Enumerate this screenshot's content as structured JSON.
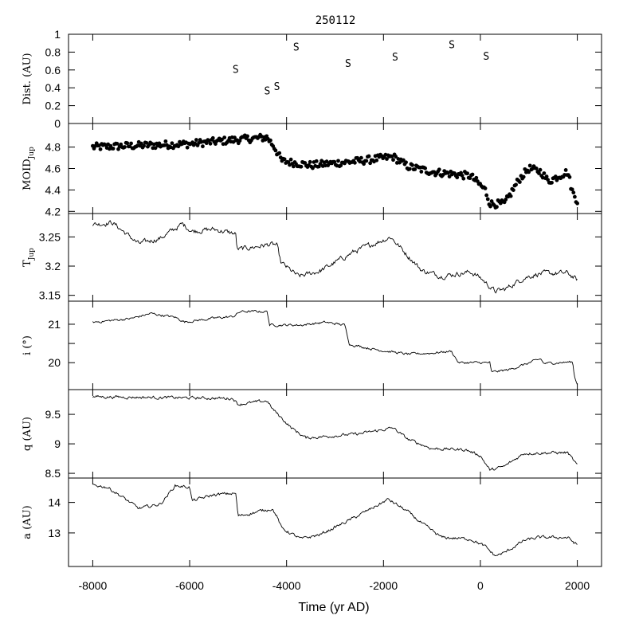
{
  "figure": {
    "title": "250112",
    "xlabel": "Time (yr AD)",
    "xlim": [
      -8500,
      2500
    ],
    "xticks": [
      -8000,
      -6000,
      -4000,
      -2000,
      0,
      2000
    ],
    "xtick_labels": [
      "-8000",
      "-6000",
      "-4000",
      "-2000",
      "0",
      "2000"
    ]
  },
  "chart_data": [
    {
      "type": "scatter",
      "name": "dist",
      "ylabel": "Dist. (AU)",
      "ylim": [
        0,
        1
      ],
      "yticks": [
        0,
        0.2,
        0.4,
        0.6,
        0.8,
        1
      ],
      "ytick_labels": [
        "0",
        "0.2",
        "0.4",
        "0.6",
        "0.8",
        "1"
      ],
      "marker_label": "S",
      "points": [
        {
          "x": -5050,
          "y": 0.61
        },
        {
          "x": -4400,
          "y": 0.37
        },
        {
          "x": -4200,
          "y": 0.42
        },
        {
          "x": -3800,
          "y": 0.86
        },
        {
          "x": -2730,
          "y": 0.68
        },
        {
          "x": -1760,
          "y": 0.75
        },
        {
          "x": -590,
          "y": 0.89
        },
        {
          "x": 120,
          "y": 0.76
        }
      ]
    },
    {
      "type": "scatter",
      "name": "moid",
      "ylabel": "MOID",
      "ylabel_sub": "Jup",
      "ylim": [
        4.18,
        5.02
      ],
      "yticks": [
        4.2,
        4.4,
        4.6,
        4.8
      ],
      "ytick_labels": [
        "4.2",
        "4.4",
        "4.6",
        "4.8"
      ],
      "trend": [
        [
          -8000,
          4.8
        ],
        [
          -6000,
          4.83
        ],
        [
          -5000,
          4.87
        ],
        [
          -4400,
          4.89
        ],
        [
          -4250,
          4.8
        ],
        [
          -4100,
          4.67
        ],
        [
          -3500,
          4.63
        ],
        [
          -2500,
          4.67
        ],
        [
          -1800,
          4.71
        ],
        [
          -1500,
          4.62
        ],
        [
          -1000,
          4.57
        ],
        [
          -200,
          4.53
        ],
        [
          100,
          4.4
        ],
        [
          200,
          4.27
        ],
        [
          500,
          4.27
        ],
        [
          800,
          4.5
        ],
        [
          1000,
          4.6
        ],
        [
          1250,
          4.57
        ],
        [
          1400,
          4.48
        ],
        [
          1800,
          4.57
        ],
        [
          1900,
          4.38
        ],
        [
          2000,
          4.3
        ]
      ],
      "jitter": 0.035,
      "count": 380
    },
    {
      "type": "line",
      "name": "tjup",
      "ylabel": "T",
      "ylabel_sub": "Jup",
      "ylim": [
        3.14,
        3.29
      ],
      "yticks": [
        3.15,
        3.2,
        3.25
      ],
      "ytick_labels": [
        "3.15",
        "3.2",
        "3.25"
      ],
      "trend": [
        [
          -8000,
          3.271
        ],
        [
          -7600,
          3.275
        ],
        [
          -7050,
          3.238
        ],
        [
          -6600,
          3.248
        ],
        [
          -6150,
          3.272
        ],
        [
          -5950,
          3.26
        ],
        [
          -5500,
          3.263
        ],
        [
          -5050,
          3.255
        ],
        [
          -5020,
          3.228
        ],
        [
          -4350,
          3.237
        ],
        [
          -4200,
          3.236
        ],
        [
          -4120,
          3.206
        ],
        [
          -3750,
          3.182
        ],
        [
          -3300,
          3.192
        ],
        [
          -2600,
          3.225
        ],
        [
          -1850,
          3.25
        ],
        [
          -1500,
          3.218
        ],
        [
          -1200,
          3.192
        ],
        [
          -800,
          3.183
        ],
        [
          -200,
          3.19
        ],
        [
          0,
          3.18
        ],
        [
          300,
          3.157
        ],
        [
          500,
          3.16
        ],
        [
          900,
          3.18
        ],
        [
          1200,
          3.187
        ],
        [
          1800,
          3.188
        ],
        [
          2000,
          3.176
        ]
      ],
      "jitter": 0.0035,
      "count": 560
    },
    {
      "type": "line",
      "name": "incl",
      "ylabel": "i (°)",
      "ylim": [
        19.3,
        21.6
      ],
      "yticks": [
        20,
        20.5,
        21
      ],
      "ytick_labels": [
        "20",
        "",
        "21"
      ],
      "trend": [
        [
          -8000,
          21.05
        ],
        [
          -7200,
          21.15
        ],
        [
          -6800,
          21.28
        ],
        [
          -6300,
          21.18
        ],
        [
          -6100,
          21.06
        ],
        [
          -5400,
          21.17
        ],
        [
          -5100,
          21.2
        ],
        [
          -4950,
          21.33
        ],
        [
          -4400,
          21.33
        ],
        [
          -4350,
          20.98
        ],
        [
          -3700,
          20.98
        ],
        [
          -3200,
          21.05
        ],
        [
          -2800,
          20.98
        ],
        [
          -2700,
          20.48
        ],
        [
          -2200,
          20.35
        ],
        [
          -1500,
          20.22
        ],
        [
          -1000,
          20.25
        ],
        [
          -600,
          20.3
        ],
        [
          -450,
          20.0
        ],
        [
          200,
          20.0
        ],
        [
          220,
          19.75
        ],
        [
          600,
          19.82
        ],
        [
          1250,
          20.1
        ],
        [
          1300,
          19.98
        ],
        [
          1900,
          20.02
        ],
        [
          1950,
          19.6
        ],
        [
          2000,
          19.45
        ]
      ],
      "jitter": 0.025,
      "count": 560
    },
    {
      "type": "line",
      "name": "q",
      "ylabel": "q (AU)",
      "ylim": [
        8.42,
        9.92
      ],
      "yticks": [
        8.5,
        9,
        9.5
      ],
      "ytick_labels": [
        "8.5",
        "9",
        "9.5"
      ],
      "trend": [
        [
          -8000,
          9.8
        ],
        [
          -5100,
          9.77
        ],
        [
          -5000,
          9.67
        ],
        [
          -4400,
          9.73
        ],
        [
          -4300,
          9.6
        ],
        [
          -3900,
          9.27
        ],
        [
          -3600,
          9.1
        ],
        [
          -2500,
          9.17
        ],
        [
          -1800,
          9.27
        ],
        [
          -1500,
          9.08
        ],
        [
          -1000,
          8.92
        ],
        [
          -300,
          8.9
        ],
        [
          0,
          8.8
        ],
        [
          200,
          8.55
        ],
        [
          500,
          8.62
        ],
        [
          900,
          8.84
        ],
        [
          1500,
          8.85
        ],
        [
          1800,
          8.85
        ],
        [
          2000,
          8.63
        ]
      ],
      "jitter": 0.02,
      "count": 560
    },
    {
      "type": "line",
      "name": "a",
      "ylabel": "a (AU)",
      "ylim": [
        11.9,
        14.8
      ],
      "yticks": [
        13,
        14
      ],
      "ytick_labels": [
        "13",
        "14"
      ],
      "trend": [
        [
          -8000,
          14.58
        ],
        [
          -7700,
          14.5
        ],
        [
          -7500,
          14.3
        ],
        [
          -7050,
          13.8
        ],
        [
          -6600,
          13.95
        ],
        [
          -6300,
          14.55
        ],
        [
          -6000,
          14.5
        ],
        [
          -5950,
          14.05
        ],
        [
          -5500,
          14.25
        ],
        [
          -5050,
          14.3
        ],
        [
          -5000,
          13.55
        ],
        [
          -4300,
          13.8
        ],
        [
          -4200,
          13.55
        ],
        [
          -4100,
          13.15
        ],
        [
          -3700,
          12.8
        ],
        [
          -3300,
          12.95
        ],
        [
          -2600,
          13.5
        ],
        [
          -1900,
          14.1
        ],
        [
          -1500,
          13.7
        ],
        [
          -1200,
          13.3
        ],
        [
          -800,
          12.85
        ],
        [
          -200,
          12.8
        ],
        [
          100,
          12.55
        ],
        [
          300,
          12.25
        ],
        [
          500,
          12.35
        ],
        [
          900,
          12.75
        ],
        [
          1200,
          12.85
        ],
        [
          1800,
          12.85
        ],
        [
          2000,
          12.6
        ]
      ],
      "jitter": 0.04,
      "count": 560
    }
  ]
}
